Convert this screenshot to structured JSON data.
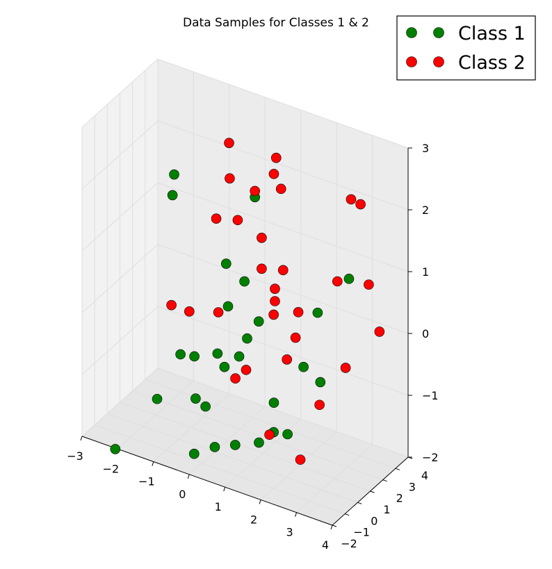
{
  "chart_data": {
    "type": "scatter",
    "projection": "3d",
    "title": "Data Samples for Classes 1 & 2",
    "xlabel": "",
    "ylabel": "",
    "zlabel": "",
    "xlim": [
      -3,
      4
    ],
    "ylim": [
      -2,
      4
    ],
    "zlim": [
      -2,
      3
    ],
    "x_ticks": [
      "−3",
      "−2",
      "−1",
      "0",
      "1",
      "2",
      "3",
      "4"
    ],
    "y_ticks": [
      "−2",
      "−1",
      "0",
      "1",
      "2",
      "3",
      "4"
    ],
    "z_ticks": [
      "−2",
      "−1",
      "0",
      "1",
      "2",
      "3"
    ],
    "grid": true,
    "legend_position": "top-right",
    "series": [
      {
        "name": "Class 1",
        "color": "#008000",
        "points": [
          [
            1.2,
            -0.2,
            2.4
          ],
          [
            2.7,
            3.0,
            0.8
          ],
          [
            -1.6,
            1.2,
            1.6
          ],
          [
            -1.2,
            0.2,
            2.2
          ],
          [
            0.8,
            0.1,
            0.9
          ],
          [
            -0.1,
            1.2,
            0.8
          ],
          [
            0.2,
            0.5,
            0.3
          ],
          [
            0.6,
            1.8,
            -0.1
          ],
          [
            0.3,
            1.1,
            -0.6
          ],
          [
            -0.2,
            0.8,
            -0.6
          ],
          [
            0.1,
            0.5,
            -0.7
          ],
          [
            -1.2,
            0.7,
            -0.8
          ],
          [
            -0.6,
            0.1,
            -0.6
          ],
          [
            -0.6,
            0.2,
            -1.3
          ],
          [
            -0.5,
            0.7,
            -1.5
          ],
          [
            -1.5,
            -0.3,
            -1.4
          ],
          [
            -0.5,
            -0.2,
            -2.1
          ],
          [
            -0.1,
            0.3,
            -2.0
          ],
          [
            0.4,
            0.5,
            -1.9
          ],
          [
            1.1,
            0.4,
            -1.7
          ],
          [
            1.2,
            1.3,
            -1.2
          ],
          [
            1.3,
            1.0,
            -1.6
          ],
          [
            2.1,
            1.1,
            -0.4
          ],
          [
            2.5,
            1.3,
            -0.6
          ],
          [
            2.0,
            2.5,
            0.2
          ],
          [
            -2.6,
            -0.5,
            -2.4
          ],
          [
            1.9,
            0.4,
            -1.4
          ],
          [
            1.3,
            -1.1,
            0.3
          ]
        ]
      },
      {
        "name": "Class 2",
        "color": "#ff0000",
        "points": [
          [
            1.2,
            -0.2,
            2.5
          ],
          [
            0.3,
            0.3,
            3.0
          ],
          [
            1.3,
            1.2,
            2.8
          ],
          [
            0.0,
            1.2,
            2.2
          ],
          [
            1.2,
            1.3,
            2.5
          ],
          [
            1.4,
            1.3,
            2.3
          ],
          [
            2.9,
            2.6,
            2.2
          ],
          [
            3.2,
            2.5,
            2.2
          ],
          [
            -0.2,
            0.7,
            1.6
          ],
          [
            0.4,
            0.7,
            1.7
          ],
          [
            1.0,
            0.9,
            1.5
          ],
          [
            2.8,
            1.8,
            1.0
          ],
          [
            3.5,
            2.3,
            1.0
          ],
          [
            1.0,
            0.9,
            1.0
          ],
          [
            1.6,
            0.9,
            1.1
          ],
          [
            1.6,
            2.1,
            0.2
          ],
          [
            1.3,
            1.1,
            0.7
          ],
          [
            1.3,
            1.1,
            0.5
          ],
          [
            1.3,
            1.0,
            0.3
          ],
          [
            3.8,
            2.3,
            0.3
          ],
          [
            3.1,
            1.6,
            -0.3
          ],
          [
            -1.1,
            -0.3,
            0.2
          ],
          [
            -0.6,
            -0.3,
            0.2
          ],
          [
            0.0,
            0.3,
            0.2
          ],
          [
            1.7,
            1.6,
            -0.1
          ],
          [
            0.6,
            0.8,
            -0.7
          ],
          [
            2.3,
            1.8,
            -1.1
          ],
          [
            0.3,
            0.8,
            -0.9
          ],
          [
            1.6,
            1.2,
            -0.4
          ],
          [
            2.1,
            -1.6,
            -1.0
          ],
          [
            3.0,
            -1.7,
            -1.2
          ]
        ]
      }
    ]
  }
}
